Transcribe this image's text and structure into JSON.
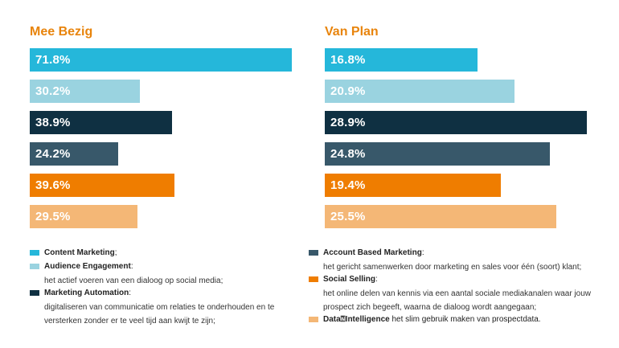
{
  "chart_data": [
    {
      "type": "bar",
      "title": "Mee Bezig",
      "categories": [
        "Content Marketing",
        "Audience Engagement",
        "Marketing Automation",
        "Account Based Marketing",
        "Social Selling",
        "Data Intelligence"
      ],
      "values": [
        71.8,
        30.2,
        38.9,
        24.2,
        39.6,
        29.5
      ],
      "labels": [
        "71.8%",
        "30.2%",
        "38.9%",
        "24.2%",
        "39.6%",
        "29.5%"
      ]
    },
    {
      "type": "bar",
      "title": "Van Plan",
      "categories": [
        "Content Marketing",
        "Audience Engagement",
        "Marketing Automation",
        "Account Based Marketing",
        "Social Selling",
        "Data Intelligence"
      ],
      "values": [
        16.8,
        20.9,
        28.9,
        24.8,
        19.4,
        25.5
      ],
      "labels": [
        "16.8%",
        "20.9%",
        "28.9%",
        "24.8%",
        "19.4%",
        "25.5%"
      ]
    }
  ],
  "colors": [
    "#25b7da",
    "#9ad3e0",
    "#0f3042",
    "#38586a",
    "#ef7d00",
    "#f4b776"
  ],
  "legend": {
    "left": [
      {
        "title": "Content Marketing",
        "suffix": ";",
        "desc": []
      },
      {
        "title": "Audience Engagement",
        "suffix": ":",
        "desc": [
          "het actief voeren van een dialoog op social media;"
        ]
      },
      {
        "title": "Marketing Automation",
        "suffix": ":",
        "desc": [
          "digitaliseren van communicatie om relaties te onderhouden en te",
          "versterken zonder er te veel tijd aan kwijt te zijn;"
        ]
      }
    ],
    "right": [
      {
        "title": "Account Based Marketing",
        "suffix": ":",
        "desc": [
          "het gericht samenwerken door marketing en sales voor één (soort) klant;"
        ]
      },
      {
        "title": "Social Selling",
        "suffix": ":",
        "desc": [
          "het online delen van kennis via een aantal sociale mediakanalen waar jouw",
          "prospect zich begeeft, waarna de dialoog wordt aangegaan;"
        ]
      },
      {
        "title": "Data⍰Intelligence",
        "suffix": " het slim gebruik maken van prospectdata.",
        "desc": []
      }
    ]
  }
}
